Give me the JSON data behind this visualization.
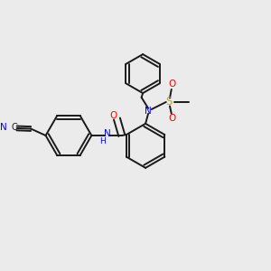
{
  "background_color": "#ebebeb",
  "bond_color": "#1a1a1a",
  "N_color": "#0000ff",
  "O_color": "#ff0000",
  "S_color": "#ccaa00",
  "figsize": [
    3.0,
    3.0
  ],
  "dpi": 100,
  "xlim": [
    0,
    10
  ],
  "ylim": [
    0,
    10
  ]
}
